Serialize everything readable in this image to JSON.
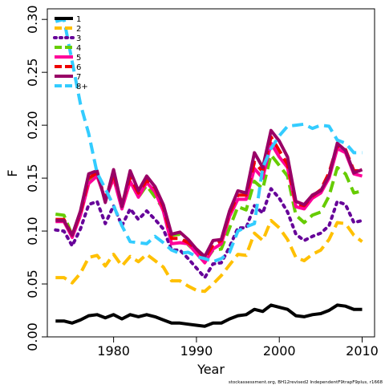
{
  "chart_data": {
    "type": "line",
    "xlabel": "Year",
    "ylabel": "F",
    "xlim": [
      1972,
      2011.5
    ],
    "ylim": [
      0,
      0.31
    ],
    "x_ticks": [
      1980,
      1990,
      2000,
      2010
    ],
    "y_ticks": [
      0.0,
      0.05,
      0.1,
      0.15,
      0.2,
      0.25,
      0.3
    ],
    "y_tick_labels": [
      "0.00",
      "0.05",
      "0.10",
      "0.15",
      "0.20",
      "0.25",
      "0.30"
    ],
    "legend_position": "top-left",
    "grid": false,
    "x": [
      1973,
      1974,
      1975,
      1976,
      1977,
      1978,
      1979,
      1980,
      1981,
      1982,
      1983,
      1984,
      1985,
      1986,
      1987,
      1988,
      1989,
      1990,
      1991,
      1992,
      1993,
      1994,
      1995,
      1996,
      1997,
      1998,
      1999,
      2000,
      2001,
      2002,
      2003,
      2004,
      2005,
      2006,
      2007,
      2008,
      2009,
      2010
    ],
    "series": [
      {
        "name": "1",
        "color": "#000000",
        "dash": "solid",
        "values": [
          0.015,
          0.015,
          0.013,
          0.016,
          0.02,
          0.021,
          0.018,
          0.021,
          0.017,
          0.021,
          0.019,
          0.021,
          0.019,
          0.016,
          0.013,
          0.013,
          0.012,
          0.011,
          0.01,
          0.013,
          0.013,
          0.017,
          0.02,
          0.021,
          0.026,
          0.024,
          0.03,
          0.028,
          0.026,
          0.02,
          0.019,
          0.021,
          0.022,
          0.025,
          0.03,
          0.029,
          0.026,
          0.026
        ]
      },
      {
        "name": "2",
        "color": "#ffc000",
        "dash": "dashed",
        "values": [
          0.056,
          0.056,
          0.051,
          0.06,
          0.075,
          0.077,
          0.067,
          0.078,
          0.067,
          0.076,
          0.071,
          0.078,
          0.072,
          0.066,
          0.053,
          0.053,
          0.048,
          0.044,
          0.043,
          0.05,
          0.058,
          0.068,
          0.078,
          0.077,
          0.098,
          0.091,
          0.11,
          0.103,
          0.092,
          0.075,
          0.072,
          0.078,
          0.082,
          0.092,
          0.108,
          0.107,
          0.096,
          0.09
        ]
      },
      {
        "name": "3",
        "color": "#660099",
        "dash": "dotted",
        "values": [
          0.101,
          0.1,
          0.086,
          0.102,
          0.125,
          0.128,
          0.107,
          0.124,
          0.105,
          0.121,
          0.111,
          0.119,
          0.111,
          0.102,
          0.082,
          0.082,
          0.074,
          0.065,
          0.056,
          0.069,
          0.07,
          0.085,
          0.103,
          0.103,
          0.124,
          0.117,
          0.14,
          0.131,
          0.118,
          0.097,
          0.091,
          0.095,
          0.098,
          0.105,
          0.128,
          0.125,
          0.108,
          0.11
        ]
      },
      {
        "name": "4",
        "color": "#66cc00",
        "dash": "dashed",
        "values": [
          0.116,
          0.115,
          0.096,
          0.116,
          0.146,
          0.153,
          0.13,
          0.15,
          0.124,
          0.147,
          0.132,
          0.143,
          0.132,
          0.121,
          0.096,
          0.097,
          0.087,
          0.08,
          0.071,
          0.082,
          0.083,
          0.103,
          0.123,
          0.12,
          0.147,
          0.14,
          0.172,
          0.162,
          0.152,
          0.115,
          0.108,
          0.115,
          0.118,
          0.133,
          0.16,
          0.154,
          0.136,
          0.138
        ]
      },
      {
        "name": "5",
        "color": "#ff0099",
        "dash": "solid",
        "values": [
          0.109,
          0.109,
          0.094,
          0.115,
          0.145,
          0.152,
          0.13,
          0.15,
          0.121,
          0.147,
          0.132,
          0.146,
          0.137,
          0.119,
          0.088,
          0.089,
          0.088,
          0.079,
          0.07,
          0.083,
          0.088,
          0.114,
          0.13,
          0.13,
          0.159,
          0.15,
          0.183,
          0.17,
          0.16,
          0.123,
          0.121,
          0.131,
          0.136,
          0.15,
          0.178,
          0.174,
          0.154,
          0.152
        ]
      },
      {
        "name": "6",
        "color": "#ee0000",
        "dash": "dashed",
        "values": [
          0.111,
          0.111,
          0.096,
          0.117,
          0.15,
          0.155,
          0.13,
          0.154,
          0.125,
          0.151,
          0.136,
          0.148,
          0.141,
          0.123,
          0.093,
          0.093,
          0.089,
          0.083,
          0.074,
          0.087,
          0.091,
          0.117,
          0.134,
          0.134,
          0.165,
          0.156,
          0.189,
          0.176,
          0.163,
          0.126,
          0.124,
          0.133,
          0.139,
          0.155,
          0.181,
          0.177,
          0.157,
          0.157
        ]
      },
      {
        "name": "7",
        "color": "#990066",
        "dash": "solid",
        "values": [
          0.11,
          0.11,
          0.096,
          0.119,
          0.154,
          0.157,
          0.127,
          0.158,
          0.123,
          0.157,
          0.138,
          0.152,
          0.142,
          0.125,
          0.097,
          0.099,
          0.092,
          0.083,
          0.076,
          0.091,
          0.092,
          0.119,
          0.138,
          0.136,
          0.174,
          0.16,
          0.195,
          0.185,
          0.17,
          0.128,
          0.125,
          0.134,
          0.138,
          0.152,
          0.183,
          0.176,
          0.155,
          0.158
        ]
      },
      {
        "name": "8+",
        "color": "#33ccff",
        "dash": "dashed",
        "values": [
          0.298,
          0.3,
          0.26,
          0.22,
          0.192,
          0.155,
          0.14,
          0.124,
          0.105,
          0.09,
          0.089,
          0.088,
          0.095,
          0.089,
          0.082,
          0.079,
          0.08,
          0.076,
          0.074,
          0.071,
          0.074,
          0.08,
          0.1,
          0.104,
          0.107,
          0.16,
          0.178,
          0.19,
          0.199,
          0.2,
          0.201,
          0.197,
          0.2,
          0.199,
          0.186,
          0.183,
          0.174,
          0.174
        ]
      }
    ]
  },
  "footer_text": "stockassessment.org, BH12revised2 IndependentF9trapF9plus, r1668"
}
